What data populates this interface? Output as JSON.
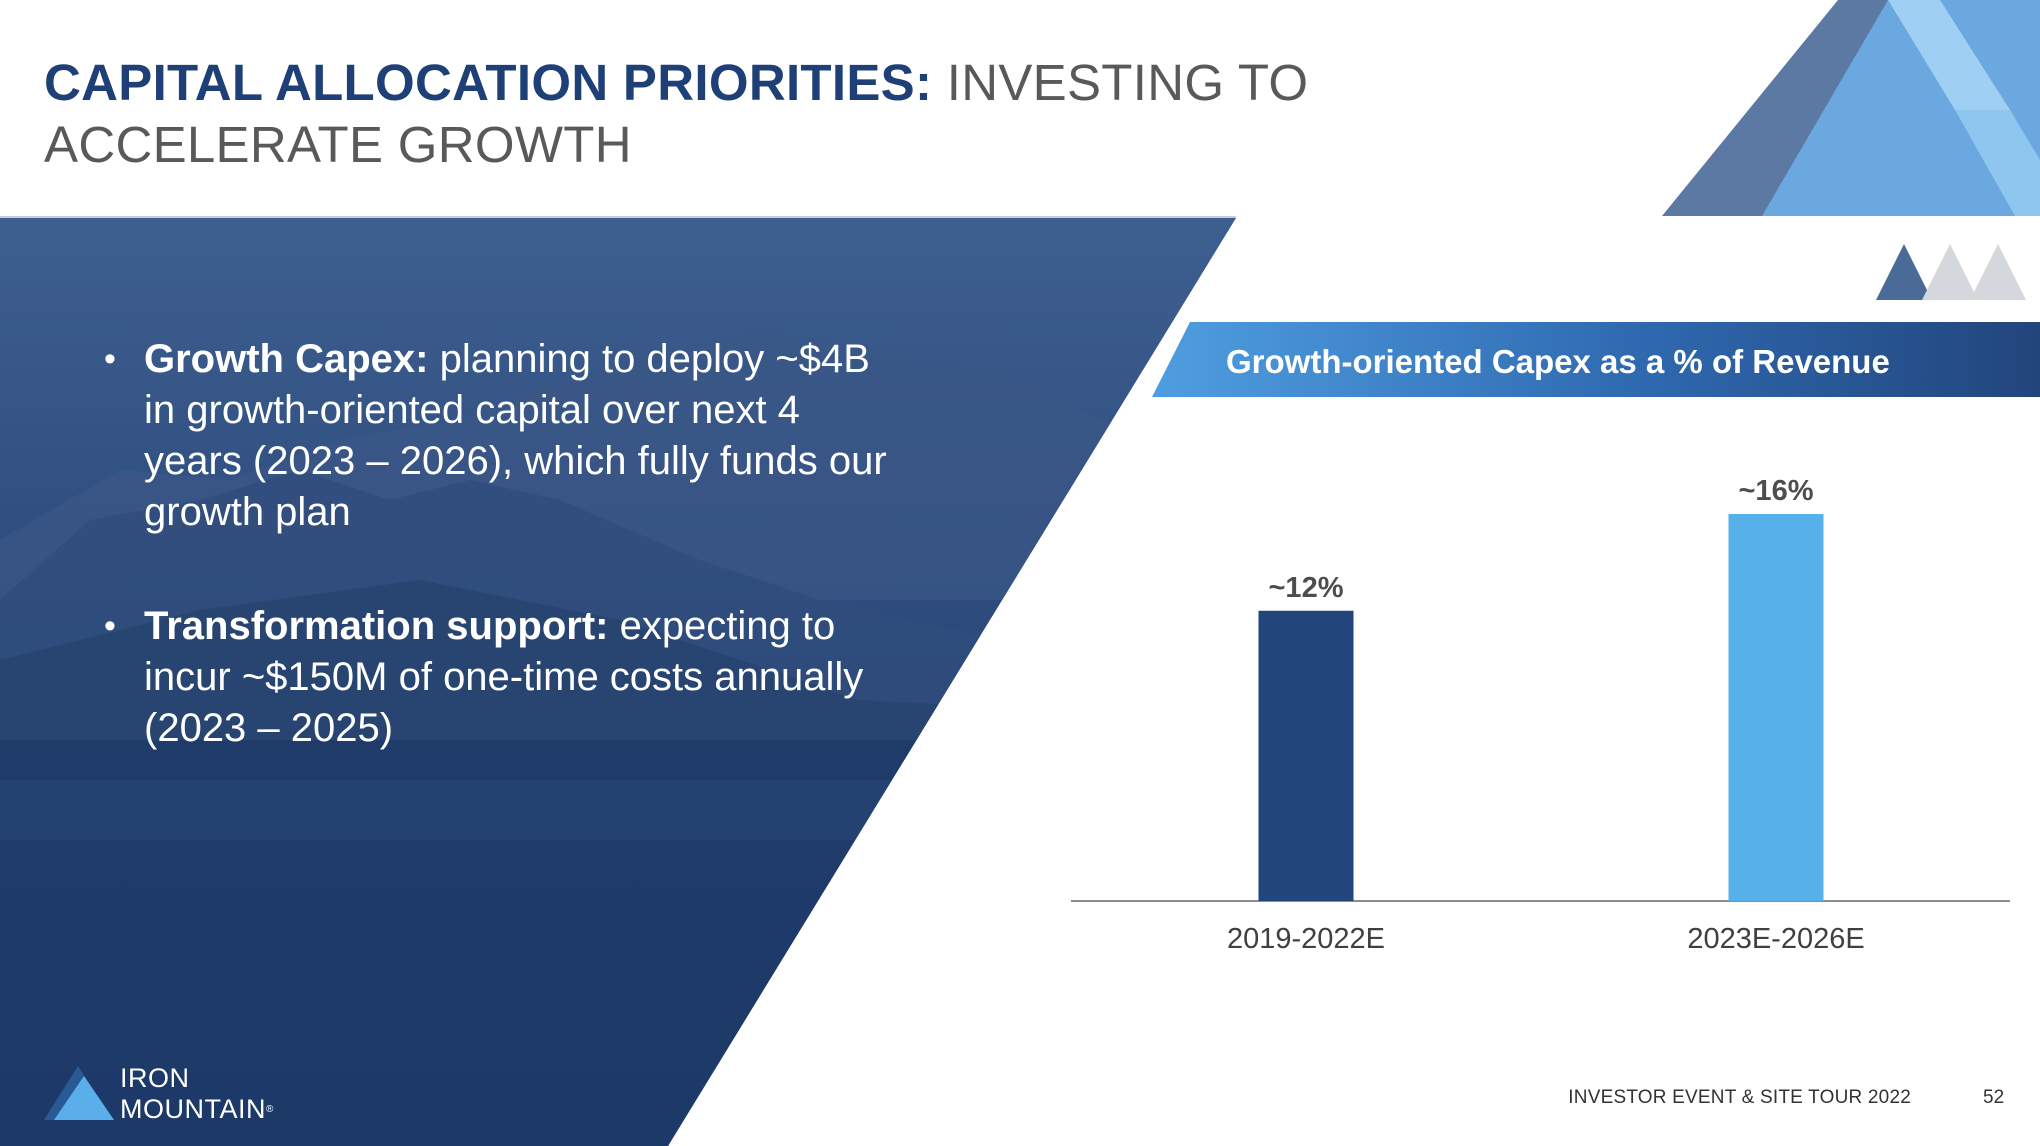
{
  "header": {
    "title_bold": "CAPITAL ALLOCATION PRIORITIES:",
    "title_rest": " INVESTING TO ACCELERATE GROWTH"
  },
  "bullets": [
    {
      "lead": "Growth Capex:",
      "text": " planning to deploy ~$4B in growth-oriented capital over next 4 years (2023 – 2026), which fully funds our growth plan"
    },
    {
      "lead": "Transformation support:",
      "text": " expecting to incur ~$150M of one-time costs annually (2023 – 2025)"
    }
  ],
  "logo": {
    "line1": "IRON",
    "line2": "MOUNTAIN",
    "mark": "®"
  },
  "footer": {
    "event": "INVESTOR EVENT & SITE TOUR 2022",
    "page": "52"
  },
  "colors": {
    "navy": "#22457b",
    "light_blue": "#56b1ea",
    "title_blue": "#1f3f77"
  },
  "chart_data": {
    "type": "bar",
    "title": "Growth-oriented Capex as a % of Revenue",
    "categories": [
      "2019-2022E",
      "2023E-2026E"
    ],
    "values": [
      12,
      16
    ],
    "data_labels": [
      "~12%",
      "~16%"
    ],
    "series_colors": [
      "#22457b",
      "#56b1ea"
    ],
    "ylim": [
      0,
      16
    ],
    "grid": false,
    "legend": "none",
    "xlabel": "",
    "ylabel": ""
  }
}
